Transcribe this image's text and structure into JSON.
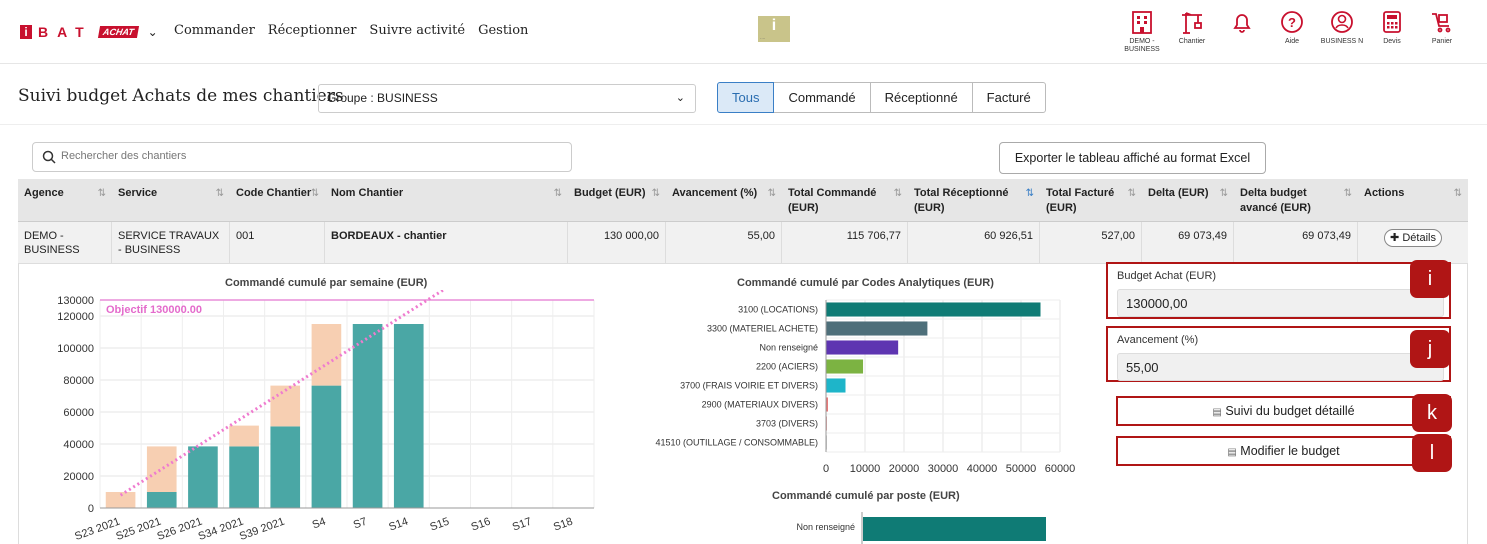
{
  "header": {
    "logo_i": "i",
    "logo_letters": "BAT",
    "logo_badge": "ACHAT",
    "nav": [
      "Commander",
      "Réceptionner",
      "Suivre activité",
      "Gestion"
    ],
    "center_logo": "i",
    "icons": [
      {
        "name": "building-icon",
        "label": "DEMO - BUSINESS"
      },
      {
        "name": "crane-icon",
        "label": "Chantier"
      },
      {
        "name": "bell-icon",
        "label": ""
      },
      {
        "name": "help-icon",
        "label": "Aide"
      },
      {
        "name": "user-icon",
        "label": "BUSINESS N"
      },
      {
        "name": "calculator-icon",
        "label": "Devis"
      },
      {
        "name": "cart-icon",
        "label": "Panier"
      }
    ],
    "accent": "#c8102e"
  },
  "page": {
    "title": "Suivi budget Achats de mes chantiers",
    "group_value": "Groupe : BUSINESS",
    "filters": [
      "Tous",
      "Commandé",
      "Réceptionné",
      "Facturé"
    ],
    "active_filter": "Tous",
    "search_placeholder": "Rechercher des chantiers",
    "export_label": "Exporter le tableau affiché au format Excel"
  },
  "table": {
    "headers": [
      "Agence",
      "Service",
      "Code Chantier",
      "Nom Chantier",
      "Budget (EUR)",
      "Avancement (%)",
      "Total Commandé (EUR)",
      "Total Réceptionné (EUR)",
      "Total Facturé (EUR)",
      "Delta (EUR)",
      "Delta budget avancé (EUR)",
      "Actions"
    ],
    "row": {
      "agence": "DEMO - BUSINESS",
      "service": "SERVICE TRAVAUX - BUSINESS",
      "code": "001",
      "nom": "BORDEAUX - chantier",
      "budget": "130 000,00",
      "avancement": "55,00",
      "commande": "115 706,77",
      "receptionne": "60 926,51",
      "facture": "527,00",
      "delta": "69 073,49",
      "delta_avance": "69 073,49",
      "action": "Détails"
    }
  },
  "panel": {
    "budget_label": "Budget Achat (EUR)",
    "budget_value": "130000,00",
    "avancement_label": "Avancement (%)",
    "avancement_value": "55,00",
    "suivi_label": "Suivi du budget détaillé",
    "modifier_label": "Modifier le budget",
    "badges": [
      "i",
      "j",
      "k",
      "l"
    ]
  },
  "chart_data": [
    {
      "type": "bar",
      "title": "Commandé cumulé par semaine (EUR)",
      "categories": [
        "S23 2021",
        "S25 2021",
        "S26 2021",
        "S34 2021",
        "S39 2021",
        "S4",
        "S7",
        "S14",
        "S15",
        "S16",
        "S17",
        "S18"
      ],
      "series": [
        {
          "values": [
            0,
            10000,
            38500,
            38500,
            51000,
            76500,
            115000,
            115000,
            0,
            0,
            0,
            0
          ],
          "color": "#4aa7a5"
        },
        {
          "values": [
            10000,
            28500,
            0,
            13000,
            25500,
            38500,
            0,
            0,
            0,
            0,
            0,
            0
          ],
          "color": "#f7cfb2"
        }
      ],
      "objective_label": "Objectif 130000.00",
      "objective": 130000,
      "yticks": [
        0,
        20000,
        40000,
        60000,
        80000,
        100000,
        120000,
        130000
      ],
      "ylim": [
        0,
        130000
      ]
    },
    {
      "type": "bar",
      "orientation": "horizontal",
      "title": "Commandé cumulé par Codes Analytiques (EUR)",
      "categories": [
        "3100 (LOCATIONS)",
        "3300 (MATERIEL ACHETE)",
        "Non renseigné",
        "2200 (ACIERS)",
        "3700 (FRAIS VOIRIE ET DIVERS)",
        "2900 (MATERIAUX DIVERS)",
        "3703 (DIVERS)",
        "41510 (OUTILLAGE / CONSOMMABLE)"
      ],
      "values": [
        55000,
        26000,
        18500,
        9500,
        5000,
        500,
        200,
        100
      ],
      "colors": [
        "#0f7b75",
        "#4e6f7a",
        "#5e35b1",
        "#7cb342",
        "#1eb5c9",
        "#e57373",
        "#e0a0a0",
        "#cccccc"
      ],
      "xticks": [
        0,
        10000,
        20000,
        30000,
        40000,
        50000,
        60000
      ],
      "xlim": [
        0,
        60000
      ]
    },
    {
      "type": "bar",
      "orientation": "horizontal",
      "title": "Commandé cumulé par poste (EUR)",
      "categories": [
        "Non renseigné"
      ],
      "values": [
        115706.77
      ],
      "colors": [
        "#0f7b75"
      ]
    }
  ]
}
